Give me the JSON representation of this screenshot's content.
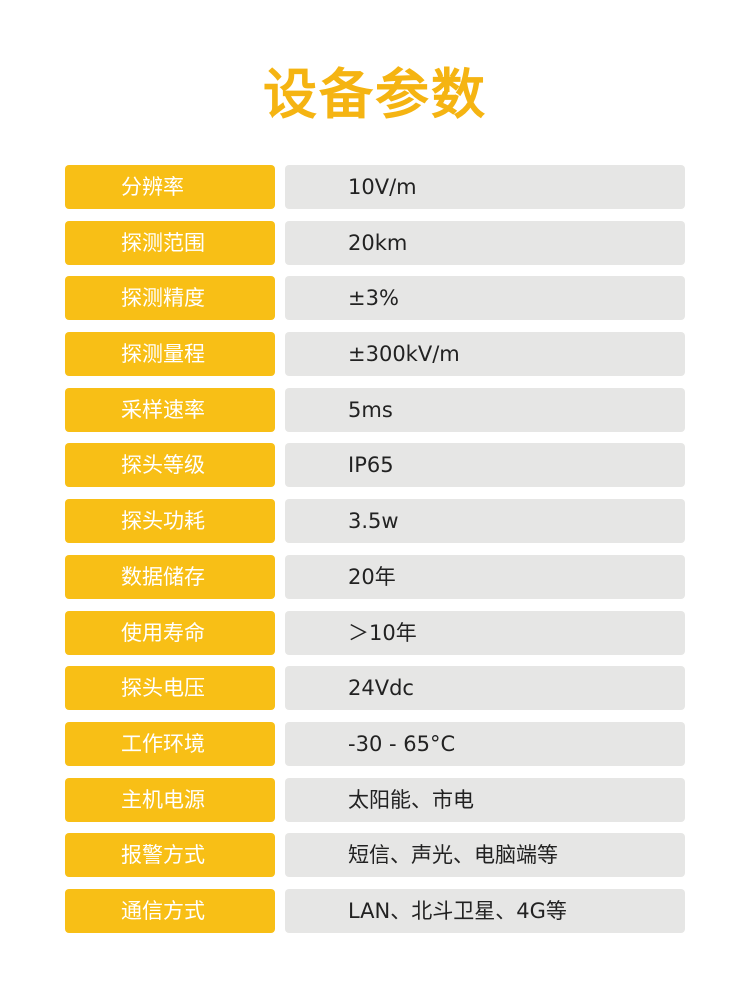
{
  "title": "设备参数",
  "colors": {
    "accent": "#f8bf16",
    "title": "#f5b412",
    "value_bg": "#e6e6e5"
  },
  "params": [
    {
      "label": "分辨率",
      "value": "10V/m"
    },
    {
      "label": "探测范围",
      "value": "20km"
    },
    {
      "label": "探测精度",
      "value": "±3%"
    },
    {
      "label": "探测量程",
      "value": "±300kV/m"
    },
    {
      "label": "采样速率",
      "value": "5ms"
    },
    {
      "label": "探头等级",
      "value": "IP65"
    },
    {
      "label": "探头功耗",
      "value": "3.5w"
    },
    {
      "label": "数据储存",
      "value": "20年"
    },
    {
      "label": "使用寿命",
      "value": "＞10年"
    },
    {
      "label": "探头电压",
      "value": "24Vdc"
    },
    {
      "label": "工作环境",
      "value": "-30 - 65°C"
    },
    {
      "label": "主机电源",
      "value": "太阳能、市电"
    },
    {
      "label": "报警方式",
      "value": "短信、声光、电脑端等"
    },
    {
      "label": "通信方式",
      "value": "LAN、北斗卫星、4G等"
    }
  ]
}
